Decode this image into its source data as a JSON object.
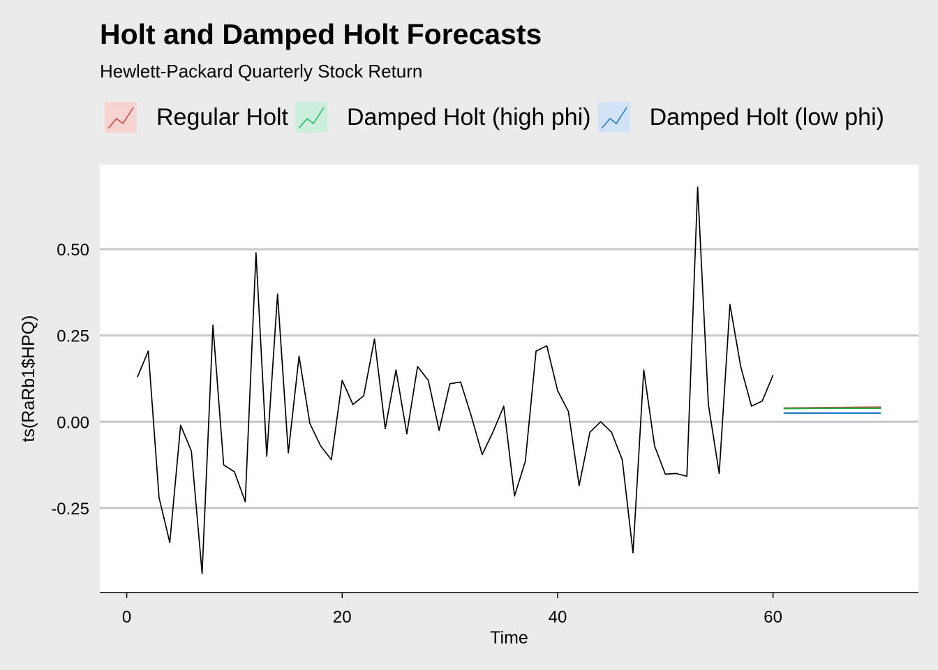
{
  "chart_data": {
    "type": "line",
    "title": "Holt and Damped Holt Forecasts",
    "subtitle": "Hewlett-Packard Quarterly Stock Return",
    "xlabel": "Time",
    "ylabel": "ts(RaRb1$HPQ)",
    "xlim": [
      -2.5,
      73.5
    ],
    "ylim": [
      -0.495,
      0.745
    ],
    "x_ticks": [
      0,
      20,
      40,
      60
    ],
    "y_ticks": [
      0.5,
      0.25,
      0.0,
      -0.25
    ],
    "x_tick_labels": [
      "0",
      "20",
      "40",
      "60"
    ],
    "y_tick_labels": [
      "0.50",
      "0.25",
      "0.00",
      "-0.25"
    ],
    "grid": "horizontal major",
    "legend_position": "top",
    "series": [
      {
        "role": "observed",
        "color": "#000000",
        "x": [
          1,
          2,
          3,
          4,
          5,
          6,
          7,
          8,
          9,
          10,
          11,
          12,
          13,
          14,
          15,
          16,
          17,
          18,
          19,
          20,
          21,
          22,
          23,
          24,
          25,
          26,
          27,
          28,
          29,
          30,
          31,
          32,
          33,
          34,
          35,
          36,
          37,
          38,
          39,
          40,
          41,
          42,
          43,
          44,
          45,
          46,
          47,
          48,
          49,
          50,
          51,
          52,
          53,
          54,
          55,
          56,
          57,
          58,
          59,
          60
        ],
        "values": [
          0.13,
          0.205,
          -0.22,
          -0.35,
          -0.01,
          -0.085,
          -0.44,
          0.28,
          -0.125,
          -0.145,
          -0.232,
          0.49,
          -0.1,
          0.37,
          -0.09,
          0.19,
          -0.005,
          -0.07,
          -0.11,
          0.12,
          0.05,
          0.075,
          0.24,
          -0.02,
          0.15,
          -0.035,
          0.16,
          0.12,
          -0.025,
          0.11,
          0.115,
          0.015,
          -0.095,
          -0.03,
          0.045,
          -0.215,
          -0.115,
          0.205,
          0.22,
          0.09,
          0.03,
          -0.185,
          -0.03,
          0.0,
          -0.03,
          -0.11,
          -0.38,
          0.15,
          -0.07,
          -0.152,
          -0.15,
          -0.158,
          0.68,
          0.05,
          -0.15,
          0.34,
          0.16,
          0.045,
          0.06,
          0.135
        ]
      },
      {
        "name": "Regular Holt",
        "color": "#F8766D",
        "line_color": "#c94a3c",
        "x": [
          61,
          62,
          63,
          64,
          65,
          66,
          67,
          68,
          69,
          70
        ],
        "values": [
          0.0395,
          0.0398,
          0.0401,
          0.0404,
          0.0407,
          0.041,
          0.0413,
          0.0416,
          0.0419,
          0.0422
        ]
      },
      {
        "name": "Damped Holt (high phi)",
        "color": "#00BA38",
        "line_color": "#2aa84a",
        "x": [
          61,
          62,
          63,
          64,
          65,
          66,
          67,
          68,
          69,
          70
        ],
        "values": [
          0.0385,
          0.0387,
          0.0389,
          0.039,
          0.0391,
          0.0392,
          0.0393,
          0.0393,
          0.0394,
          0.0394
        ]
      },
      {
        "name": "Damped Holt (low phi)",
        "color": "#619CFF",
        "line_color": "#1f78c8",
        "x": [
          61,
          62,
          63,
          64,
          65,
          66,
          67,
          68,
          69,
          70
        ],
        "values": [
          0.025,
          0.025,
          0.025,
          0.025,
          0.025,
          0.025,
          0.025,
          0.025,
          0.025,
          0.025
        ]
      }
    ]
  },
  "legend": {
    "items": [
      {
        "label": "Regular Holt",
        "fill": "#f7d3d1",
        "stroke": "#c94a3c"
      },
      {
        "label": "Damped Holt (high phi)",
        "fill": "#cdeedd",
        "stroke": "#1fbf6a"
      },
      {
        "label": "Damped Holt (low phi)",
        "fill": "#d2e3f8",
        "stroke": "#1f78c8"
      }
    ]
  },
  "colors": {
    "background": "#ebebeb",
    "panel": "#ffffff",
    "grid": "#c8c8c8",
    "axis": "#000000"
  }
}
